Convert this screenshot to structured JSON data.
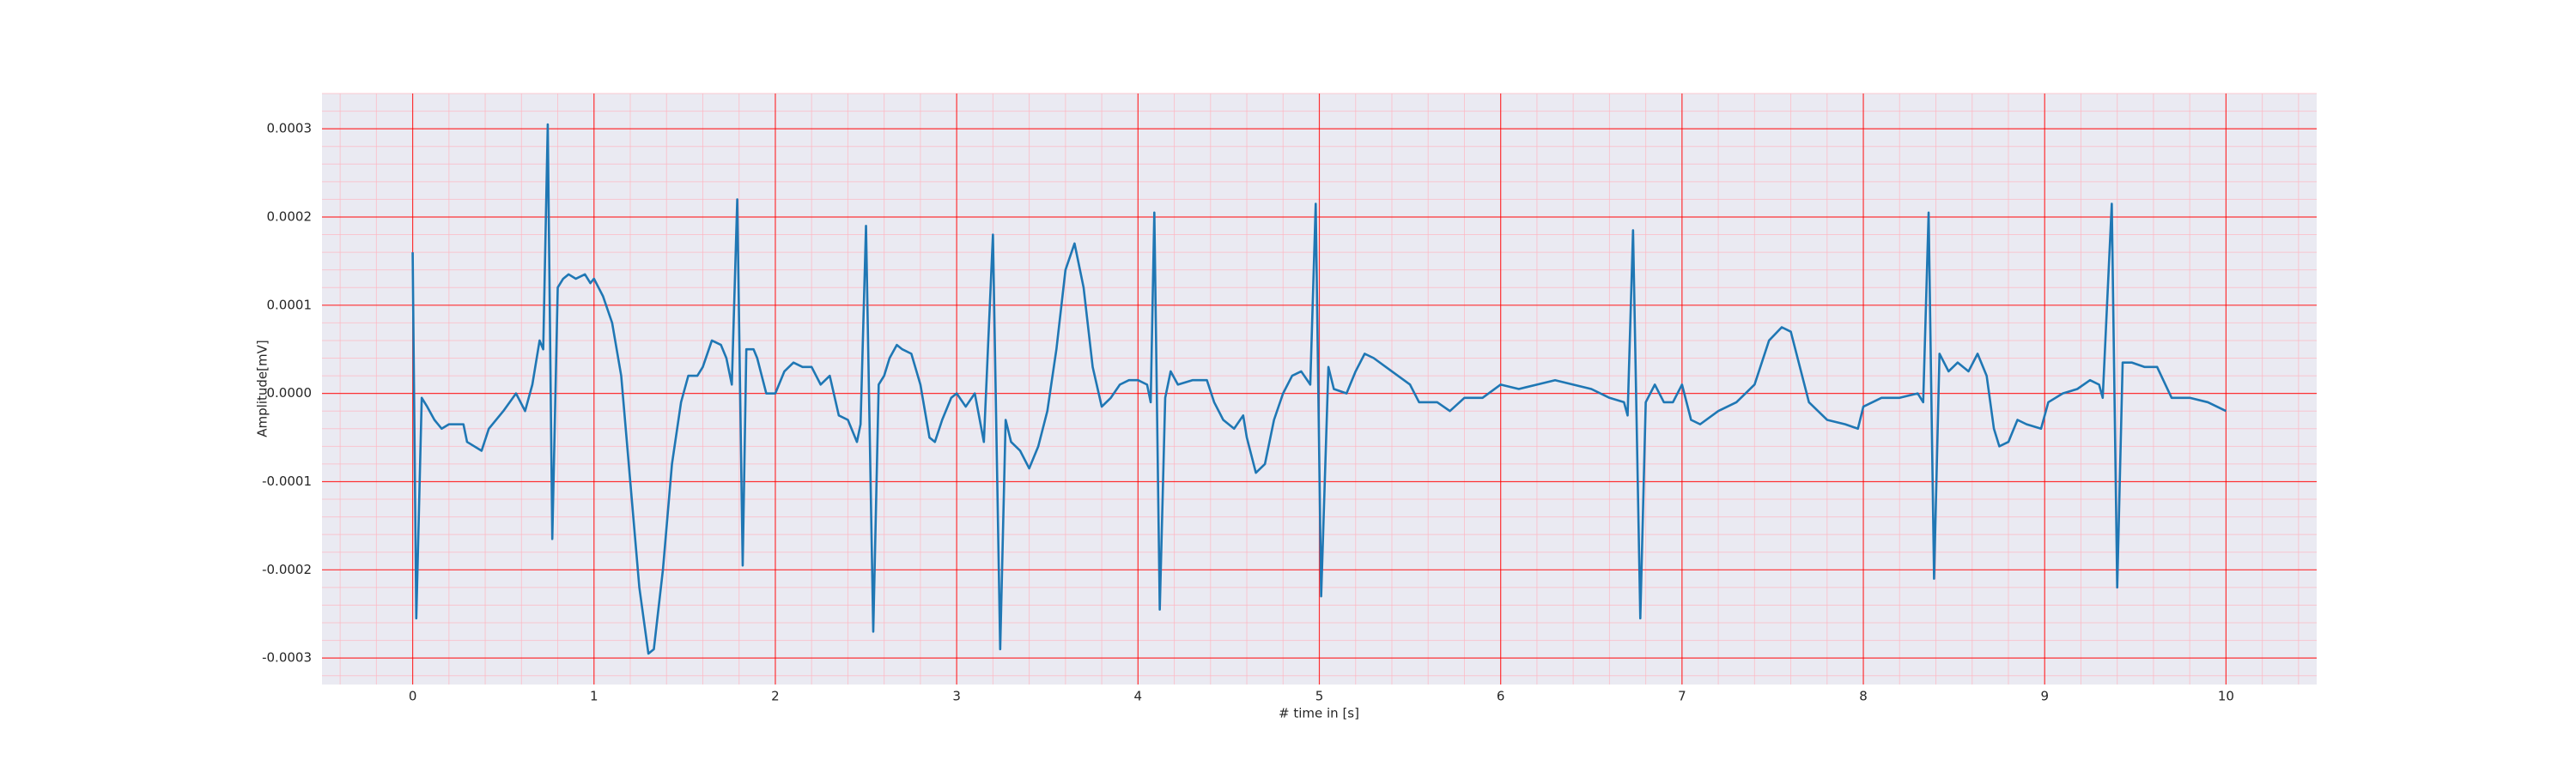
{
  "chart_data": {
    "type": "line",
    "xlabel": "# time in [s]",
    "ylabel": "Amplitude[mV]",
    "color": "#1f77b4",
    "grid": true,
    "minor_grid": true,
    "xlim": [
      -0.5,
      10.5
    ],
    "xticks": [
      0,
      1,
      2,
      3,
      4,
      5,
      6,
      7,
      8,
      9,
      10
    ],
    "ylim": [
      -0.00033,
      0.00034
    ],
    "yticks": [
      -0.0003,
      -0.0002,
      -0.0001,
      {
        "value": 0,
        "label": "0.0000"
      },
      0.0001,
      0.0002,
      0.0003
    ],
    "x": [
      0,
      0.02,
      0.05,
      0.08,
      0.12,
      0.16,
      0.2,
      0.28,
      0.3,
      0.38,
      0.42,
      0.5,
      0.57,
      0.62,
      0.66,
      0.7,
      0.72,
      0.745,
      0.77,
      0.8,
      0.83,
      0.86,
      0.9,
      0.95,
      0.98,
      1.0,
      1.05,
      1.1,
      1.15,
      1.2,
      1.25,
      1.3,
      1.33,
      1.38,
      1.43,
      1.48,
      1.52,
      1.57,
      1.6,
      1.65,
      1.7,
      1.73,
      1.76,
      1.79,
      1.82,
      1.84,
      1.88,
      1.9,
      1.95,
      2.0,
      2.05,
      2.1,
      2.15,
      2.2,
      2.25,
      2.3,
      2.35,
      2.4,
      2.45,
      2.47,
      2.5,
      2.54,
      2.57,
      2.6,
      2.63,
      2.67,
      2.7,
      2.75,
      2.8,
      2.85,
      2.88,
      2.92,
      2.97,
      3.0,
      3.05,
      3.1,
      3.15,
      3.2,
      3.24,
      3.27,
      3.3,
      3.35,
      3.4,
      3.45,
      3.5,
      3.55,
      3.6,
      3.65,
      3.7,
      3.75,
      3.8,
      3.85,
      3.9,
      3.95,
      4.0,
      4.05,
      4.07,
      4.09,
      4.12,
      4.15,
      4.18,
      4.22,
      4.3,
      4.38,
      4.42,
      4.47,
      4.53,
      4.58,
      4.6,
      4.65,
      4.7,
      4.75,
      4.8,
      4.85,
      4.9,
      4.95,
      4.98,
      5.01,
      5.05,
      5.08,
      5.15,
      5.2,
      5.25,
      5.3,
      5.4,
      5.5,
      5.55,
      5.65,
      5.72,
      5.8,
      5.9,
      6.0,
      6.1,
      6.2,
      6.3,
      6.4,
      6.5,
      6.6,
      6.68,
      6.7,
      6.73,
      6.77,
      6.8,
      6.85,
      6.9,
      6.95,
      7.0,
      7.05,
      7.1,
      7.2,
      7.3,
      7.4,
      7.48,
      7.55,
      7.6,
      7.65,
      7.7,
      7.8,
      7.9,
      7.97,
      8.0,
      8.1,
      8.2,
      8.3,
      8.33,
      8.36,
      8.39,
      8.42,
      8.47,
      8.52,
      8.58,
      8.63,
      8.68,
      8.72,
      8.75,
      8.8,
      8.85,
      8.9,
      8.98,
      9.02,
      9.1,
      9.18,
      9.25,
      9.3,
      9.32,
      9.37,
      9.4,
      9.43,
      9.48,
      9.55,
      9.62,
      9.7,
      9.8,
      9.9,
      10.0
    ],
    "values": [
      0.00016,
      -0.000255,
      -5e-06,
      -1.5e-05,
      -3e-05,
      -4e-05,
      -3.5e-05,
      -3.5e-05,
      -5.5e-05,
      -6.5e-05,
      -4e-05,
      -2e-05,
      0,
      -2e-05,
      1e-05,
      6e-05,
      5e-05,
      0.000305,
      -0.000165,
      0.00012,
      0.00013,
      0.000135,
      0.00013,
      0.000135,
      0.000125,
      0.00013,
      0.00011,
      8e-05,
      2e-05,
      -0.0001,
      -0.00022,
      -0.000295,
      -0.00029,
      -0.0002,
      -8e-05,
      -1e-05,
      2e-05,
      2e-05,
      3e-05,
      6e-05,
      5.5e-05,
      4e-05,
      1e-05,
      0.00022,
      -0.000195,
      5e-05,
      5e-05,
      4e-05,
      0,
      0,
      2.5e-05,
      3.5e-05,
      3e-05,
      3e-05,
      1e-05,
      2e-05,
      -2.5e-05,
      -3e-05,
      -5.5e-05,
      -3.5e-05,
      0.00019,
      -0.00027,
      1e-05,
      2e-05,
      4e-05,
      5.5e-05,
      5e-05,
      4.5e-05,
      1e-05,
      -5e-05,
      -5.5e-05,
      -3e-05,
      -5e-06,
      0,
      -1.5e-05,
      0,
      -5.5e-05,
      0.00018,
      -0.00029,
      -3e-05,
      -5.5e-05,
      -6.5e-05,
      -8.5e-05,
      -6e-05,
      -2e-05,
      5e-05,
      0.00014,
      0.00017,
      0.00012,
      3e-05,
      -1.5e-05,
      -5e-06,
      1e-05,
      1.5e-05,
      1.5e-05,
      1e-05,
      -1e-05,
      0.000205,
      -0.000245,
      -5e-06,
      2.5e-05,
      1e-05,
      1.5e-05,
      1.5e-05,
      -1e-05,
      -3e-05,
      -4e-05,
      -2.5e-05,
      -5e-05,
      -9e-05,
      -8e-05,
      -3e-05,
      0,
      2e-05,
      2.5e-05,
      1e-05,
      0.000215,
      -0.00023,
      3e-05,
      5e-06,
      0,
      2.5e-05,
      4.5e-05,
      4e-05,
      2.5e-05,
      1e-05,
      -1e-05,
      -1e-05,
      -2e-05,
      -5e-06,
      -5e-06,
      1e-05,
      5e-06,
      1e-05,
      1.5e-05,
      1e-05,
      5e-06,
      -5e-06,
      -1e-05,
      -2.5e-05,
      0.000185,
      -0.000255,
      -1e-05,
      1e-05,
      -1e-05,
      -1e-05,
      1e-05,
      -3e-05,
      -3.5e-05,
      -2e-05,
      -1e-05,
      1e-05,
      6e-05,
      7.5e-05,
      7e-05,
      3e-05,
      -1e-05,
      -3e-05,
      -3.5e-05,
      -4e-05,
      -1.5e-05,
      -5e-06,
      -5e-06,
      0,
      -1e-05,
      0.000205,
      -0.00021,
      4.5e-05,
      2.5e-05,
      3.5e-05,
      2.5e-05,
      4.5e-05,
      2e-05,
      -4e-05,
      -6e-05,
      -5.5e-05,
      -3e-05,
      -3.5e-05,
      -4e-05,
      -1e-05,
      0,
      5e-06,
      1.5e-05,
      1e-05,
      -5e-06,
      0.000215,
      -0.00022,
      3.5e-05,
      3.5e-05,
      3e-05,
      3e-05,
      -5e-06,
      -5e-06,
      -1e-05,
      -2e-05
    ]
  }
}
